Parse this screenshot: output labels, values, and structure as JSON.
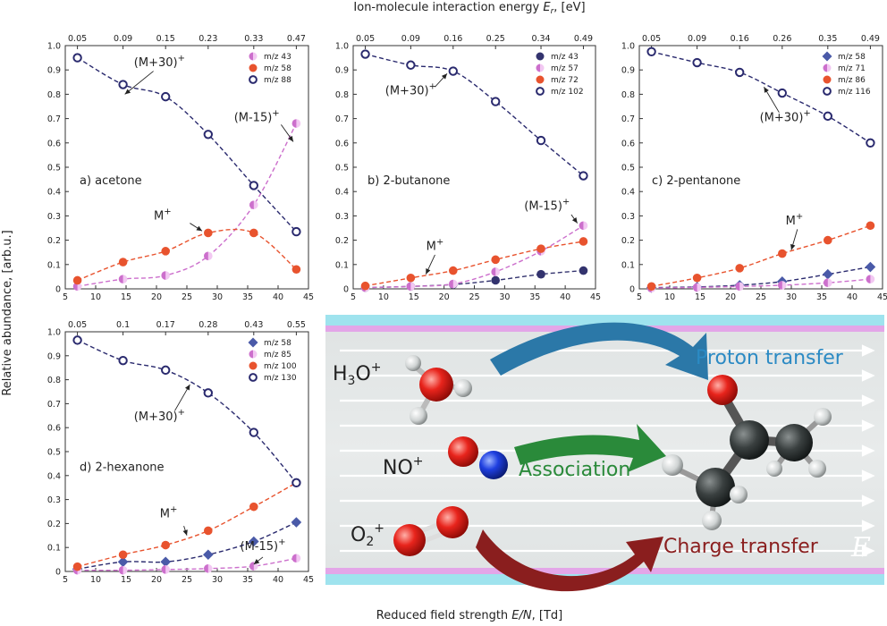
{
  "figure": {
    "top_axis_title": "Ion-molecule interaction energy E_r, [eV]",
    "top_axis_title_main": "Ion-molecule interaction energy ",
    "top_axis_title_sym": "E",
    "top_axis_title_sub": "r",
    "top_axis_title_unit": ", [eV]",
    "y_axis_title": "Relative abundance, [arb.u.]",
    "x_axis_title_main": "Reduced field strength ",
    "x_axis_title_sym": "E/N",
    "x_axis_title_unit": ", [Td]"
  },
  "chart_data": [
    {
      "type": "line",
      "label": "a) acetone",
      "xlim": [
        5,
        45
      ],
      "ylim": [
        0,
        1.0
      ],
      "x_ticks": [
        5,
        10,
        15,
        20,
        25,
        30,
        35,
        40,
        45
      ],
      "y_ticks": [
        0,
        0.1,
        0.2,
        0.3,
        0.4,
        0.5,
        0.6,
        0.7,
        0.8,
        0.9,
        1.0
      ],
      "top_ticks": [
        "0.05",
        "0.09",
        "0.15",
        "0.23",
        "0.33",
        "0.47"
      ],
      "x": [
        7,
        14.5,
        21.5,
        28.5,
        36,
        43
      ],
      "legend_position": "top-right",
      "series": [
        {
          "name": "m/z 43",
          "marker": "halfcircle",
          "color": "#cc6fcc",
          "line": "#cc6fcc",
          "values": [
            0.01,
            0.04,
            0.055,
            0.135,
            0.345,
            0.68
          ]
        },
        {
          "name": "m/z 58",
          "marker": "circle",
          "color": "#e8532e",
          "line": "#e8532e",
          "values": [
            0.035,
            0.11,
            0.155,
            0.23,
            0.23,
            0.08
          ]
        },
        {
          "name": "m/z 88",
          "marker": "opencircle",
          "color": "#2a2a6e",
          "line": "#2a2a6e",
          "values": [
            0.95,
            0.84,
            0.79,
            0.635,
            0.425,
            0.235
          ]
        }
      ],
      "annotations": [
        {
          "text": "(M+30)",
          "sup": "+",
          "x": 20.5,
          "y": 0.915,
          "ax": 14.8,
          "ay": 0.8,
          "tx": 19.5,
          "ty": 0.895
        },
        {
          "text": "(M-15)",
          "sup": "+",
          "x": 36.5,
          "y": 0.69,
          "ax": 42.5,
          "ay": 0.605,
          "tx": 40.5,
          "ty": 0.675
        },
        {
          "text": "M",
          "sup": "+",
          "x": 21,
          "y": 0.285,
          "ax": 27.5,
          "ay": 0.238,
          "tx": 25.5,
          "ty": 0.27
        }
      ]
    },
    {
      "type": "line",
      "label": "b) 2-butanone",
      "xlim": [
        5,
        45
      ],
      "ylim": [
        0,
        1.0
      ],
      "x_ticks": [
        5,
        10,
        15,
        20,
        25,
        30,
        35,
        40,
        45
      ],
      "y_ticks": [
        0,
        0.1,
        0.2,
        0.3,
        0.4,
        0.5,
        0.6,
        0.7,
        0.8,
        0.9,
        1.0
      ],
      "top_ticks": [
        "0.05",
        "0.09",
        "0.16",
        "0.25",
        "0.34",
        "0.49"
      ],
      "x": [
        7,
        14.5,
        21.5,
        28.5,
        36,
        43
      ],
      "legend_position": "top-right",
      "series": [
        {
          "name": "m/z 43",
          "marker": "circle",
          "color": "#33336e",
          "line": "#33336e",
          "values": [
            0.005,
            0.01,
            0.018,
            0.035,
            0.06,
            0.075
          ]
        },
        {
          "name": "m/z 57",
          "marker": "halfcircle",
          "color": "#cc6fcc",
          "line": "#cc6fcc",
          "values": [
            0.005,
            0.01,
            0.02,
            0.07,
            0.155,
            0.26
          ]
        },
        {
          "name": "m/z 72",
          "marker": "circle",
          "color": "#e8532e",
          "line": "#e8532e",
          "values": [
            0.012,
            0.045,
            0.075,
            0.12,
            0.165,
            0.195
          ]
        },
        {
          "name": "m/z 102",
          "marker": "opencircle",
          "color": "#2a2a6e",
          "line": "#2a2a6e",
          "values": [
            0.965,
            0.92,
            0.895,
            0.77,
            0.61,
            0.465
          ]
        }
      ],
      "annotations": [
        {
          "text": "(M+30)",
          "sup": "+",
          "x": 14.5,
          "y": 0.8,
          "ax": 20.5,
          "ay": 0.885,
          "tx": 18.5,
          "ty": 0.83
        },
        {
          "text": "(M-15)",
          "sup": "+",
          "x": 37,
          "y": 0.325,
          "ax": 42,
          "ay": 0.27,
          "tx": 41,
          "ty": 0.305
        },
        {
          "text": "M",
          "sup": "+",
          "x": 18.5,
          "y": 0.16,
          "ax": 17,
          "ay": 0.06,
          "tx": 18.5,
          "ty": 0.14
        }
      ]
    },
    {
      "type": "line",
      "label": "c) 2-pentanone",
      "xlim": [
        5,
        45
      ],
      "ylim": [
        0,
        1.0
      ],
      "x_ticks": [
        5,
        10,
        15,
        20,
        25,
        30,
        35,
        40,
        45
      ],
      "y_ticks": [
        0,
        0.1,
        0.2,
        0.3,
        0.4,
        0.5,
        0.6,
        0.7,
        0.8,
        0.9,
        1.0
      ],
      "top_ticks": [
        "0.05",
        "0.09",
        "0.16",
        "0.26",
        "0.35",
        "0.49"
      ],
      "x": [
        7,
        14.5,
        21.5,
        28.5,
        36,
        43
      ],
      "legend_position": "top-right",
      "series": [
        {
          "name": "m/z 58",
          "marker": "diamond",
          "color": "#4a5aa8",
          "line": "#2a2a6e",
          "values": [
            0.005,
            0.008,
            0.015,
            0.03,
            0.06,
            0.09
          ]
        },
        {
          "name": "m/z 71",
          "marker": "halfcircle",
          "color": "#cc6fcc",
          "line": "#cc6fcc",
          "values": [
            0.003,
            0.006,
            0.01,
            0.015,
            0.025,
            0.04
          ]
        },
        {
          "name": "m/z 86",
          "marker": "circle",
          "color": "#e8532e",
          "line": "#e8532e",
          "values": [
            0.01,
            0.045,
            0.085,
            0.145,
            0.2,
            0.26
          ]
        },
        {
          "name": "m/z 116",
          "marker": "opencircle",
          "color": "#2a2a6e",
          "line": "#2a2a6e",
          "values": [
            0.975,
            0.93,
            0.89,
            0.805,
            0.71,
            0.6
          ]
        }
      ],
      "annotations": [
        {
          "text": "(M+30)",
          "sup": "+",
          "x": 29,
          "y": 0.69,
          "ax": 25.5,
          "ay": 0.83,
          "tx": 28,
          "ty": 0.725
        },
        {
          "text": "M",
          "sup": "+",
          "x": 30.5,
          "y": 0.265,
          "ax": 30,
          "ay": 0.16,
          "tx": 31,
          "ty": 0.245
        }
      ]
    },
    {
      "type": "line",
      "label": "d) 2-hexanone",
      "xlim": [
        5,
        45
      ],
      "ylim": [
        0,
        1.0
      ],
      "x_ticks": [
        5,
        10,
        15,
        20,
        25,
        30,
        35,
        40,
        45
      ],
      "y_ticks": [
        0,
        0.1,
        0.2,
        0.3,
        0.4,
        0.5,
        0.6,
        0.7,
        0.8,
        0.9,
        1.0
      ],
      "top_ticks": [
        "0.05",
        "0.1",
        "0.17",
        "0.28",
        "0.43",
        "0.55"
      ],
      "x": [
        7,
        14.5,
        21.5,
        28.5,
        36,
        43
      ],
      "legend_position": "top-right",
      "series": [
        {
          "name": "m/z 58",
          "marker": "diamond",
          "color": "#4a5aa8",
          "line": "#2a2a6e",
          "values": [
            0.01,
            0.04,
            0.04,
            0.07,
            0.125,
            0.205
          ]
        },
        {
          "name": "m/z 85",
          "marker": "halfcircle",
          "color": "#cc6fcc",
          "line": "#cc6fcc",
          "values": [
            0.005,
            0.005,
            0.008,
            0.012,
            0.022,
            0.055
          ]
        },
        {
          "name": "m/z 100",
          "marker": "circle",
          "color": "#e8532e",
          "line": "#e8532e",
          "values": [
            0.02,
            0.07,
            0.11,
            0.17,
            0.27,
            0.37
          ]
        },
        {
          "name": "m/z 130",
          "marker": "opencircle",
          "color": "#2a2a6e",
          "line": "#2a2a6e",
          "values": [
            0.965,
            0.88,
            0.84,
            0.745,
            0.58,
            0.37
          ]
        }
      ],
      "annotations": [
        {
          "text": "(M+30)",
          "sup": "+",
          "x": 20.5,
          "y": 0.63,
          "ax": 25.5,
          "ay": 0.78,
          "tx": 23,
          "ty": 0.67
        },
        {
          "text": "M",
          "sup": "+",
          "x": 22,
          "y": 0.225,
          "ax": 25,
          "ay": 0.15,
          "tx": 24.5,
          "ty": 0.19
        },
        {
          "text": "(M-15)",
          "sup": "+",
          "x": 37.5,
          "y": 0.09,
          "ax": 36,
          "ay": 0.03,
          "tx": 37.5,
          "ty": 0.06
        }
      ]
    }
  ],
  "scheme": {
    "rows": [
      {
        "ion_main": "H",
        "ion_sub": "3",
        "ion_tail": "O",
        "ion_sup": "+",
        "label": "Proton transfer",
        "color": "#2b8ac4"
      },
      {
        "ion_main": "NO",
        "ion_sub": "",
        "ion_tail": "",
        "ion_sup": "+",
        "label": "Association",
        "color": "#2a8a3a"
      },
      {
        "ion_main": "O",
        "ion_sub": "2",
        "ion_tail": "",
        "ion_sup": "+",
        "label": "Charge transfer",
        "color": "#8a1e1e"
      }
    ],
    "field_label": "E",
    "colors": {
      "band_top": "#9fe3ee",
      "band_pink": "#e3a6e8",
      "background": "#e2e6e6"
    }
  }
}
